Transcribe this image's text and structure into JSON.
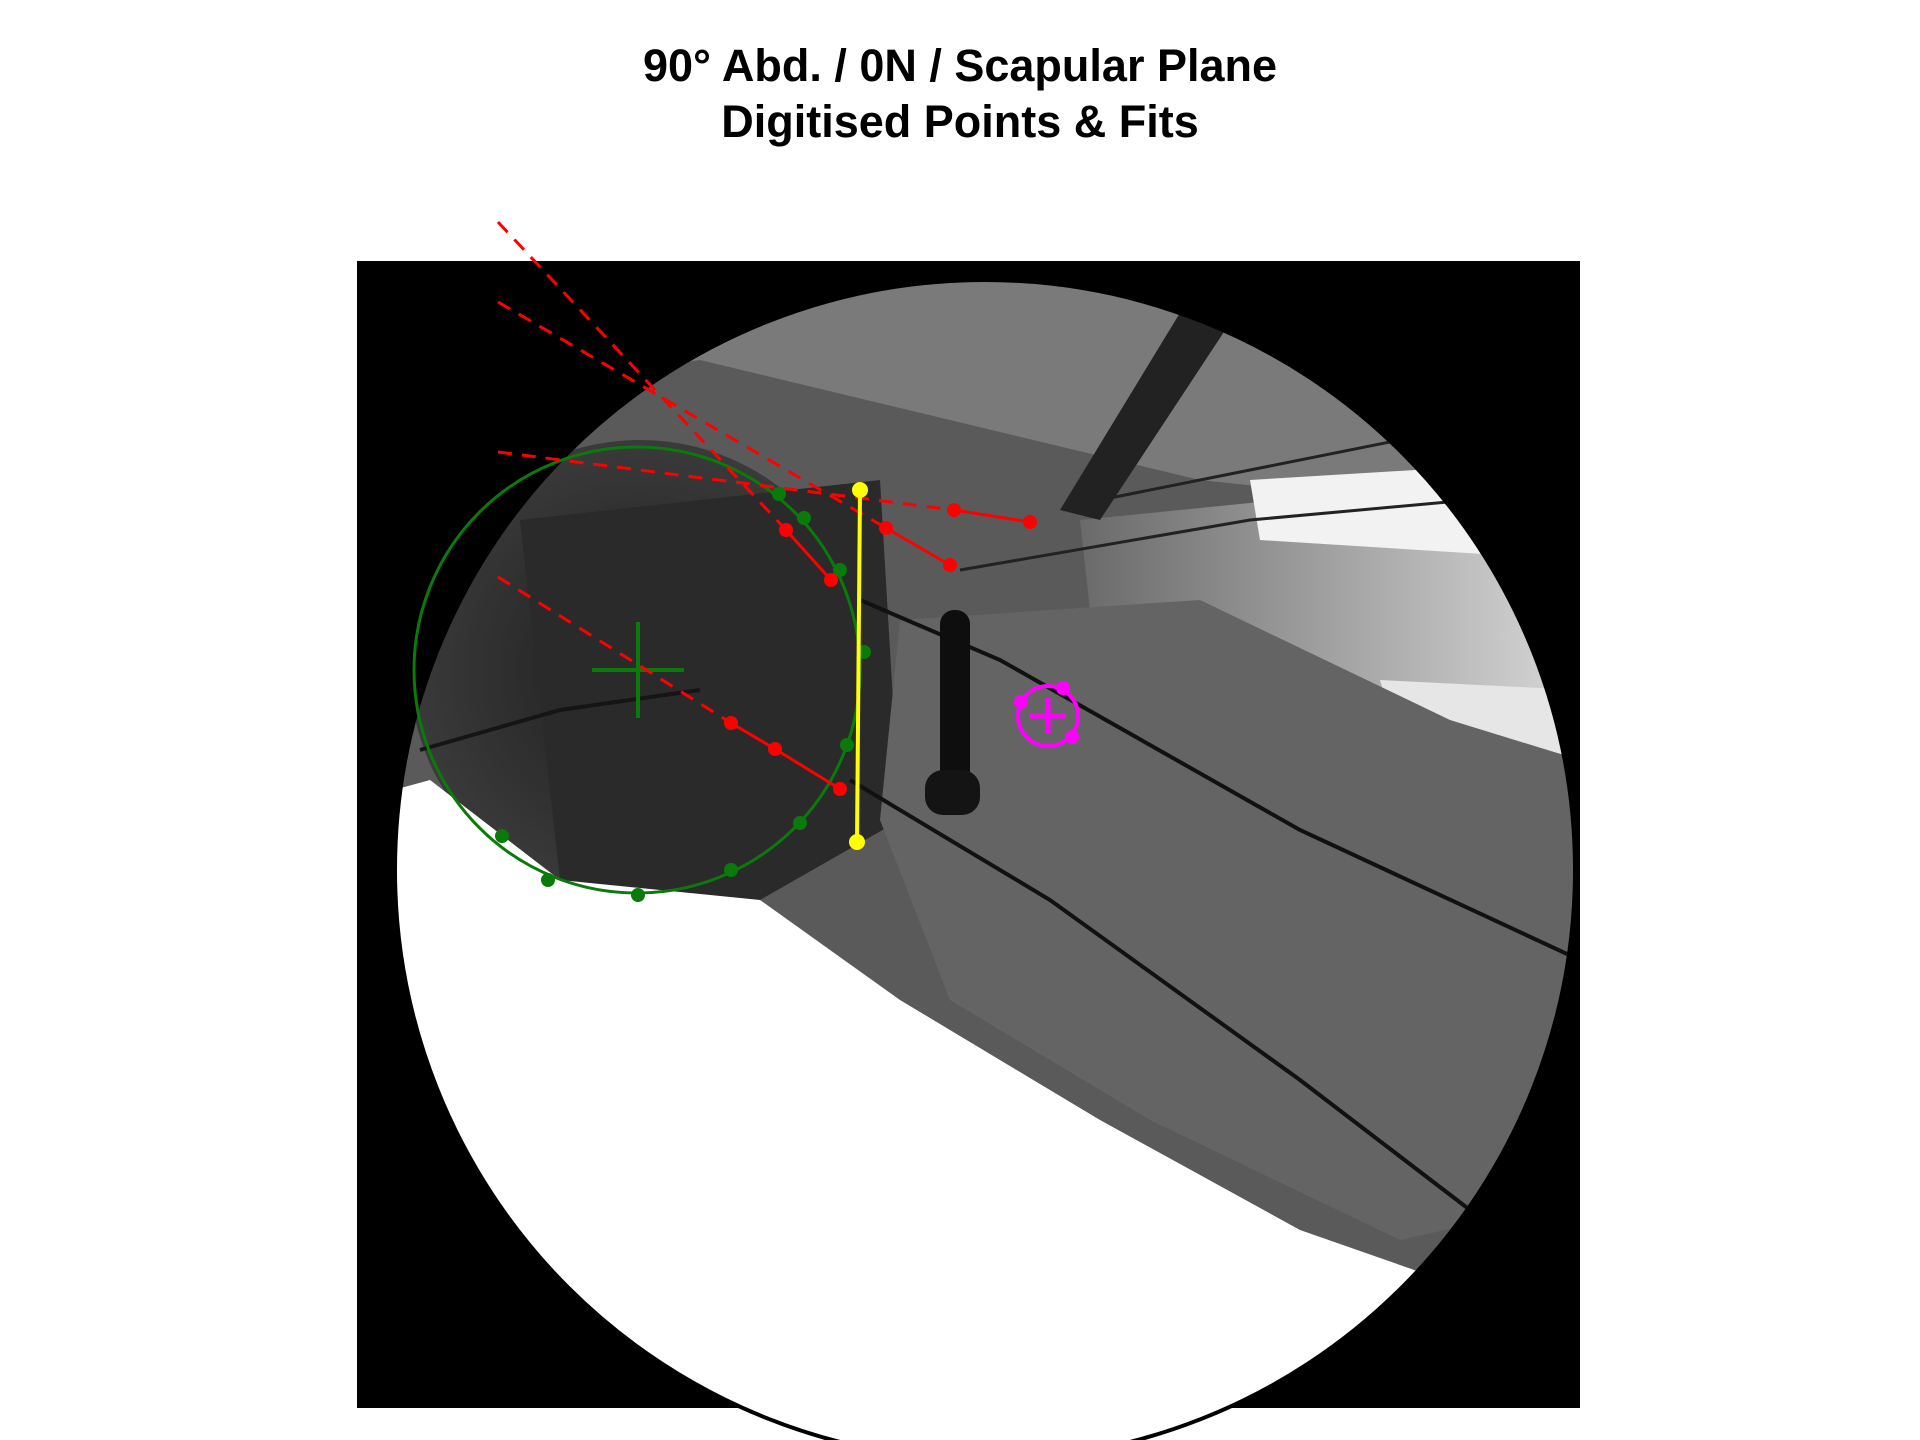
{
  "figure": {
    "title_line1": "90° Abd. / 0N / Scapular Plane",
    "title_line2": "Digitised Points & Fits"
  },
  "image": {
    "description_elements": [
      "fluoroscopy-field",
      "implant-screw",
      "guide-wires",
      "overlay-fits"
    ]
  },
  "colors": {
    "humeral_head_fit": "#0a7a0a",
    "glenoid_lines": "#ff0000",
    "glenoid_axis": "#ffff00",
    "marker": "#ff00ff",
    "background": "#000000"
  }
}
